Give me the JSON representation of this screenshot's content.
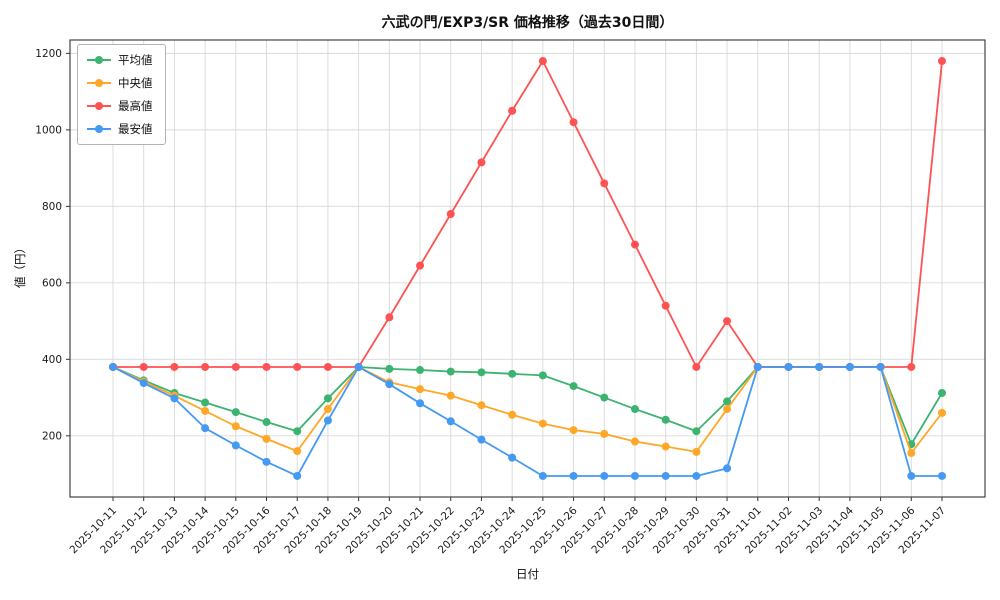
{
  "chart_data": {
    "type": "line",
    "title": "六武の門/EXP3/SR 価格推移（過去30日間）",
    "xlabel": "日付",
    "ylabel": "値（円）",
    "grid": true,
    "legend_position": "upper-left",
    "marker": "circle",
    "ylim": [
      40,
      1235
    ],
    "yticks": [
      200,
      400,
      600,
      800,
      1000,
      1200
    ],
    "categories": [
      "2025-10-11",
      "2025-10-12",
      "2025-10-13",
      "2025-10-14",
      "2025-10-15",
      "2025-10-16",
      "2025-10-17",
      "2025-10-18",
      "2025-10-19",
      "2025-10-20",
      "2025-10-21",
      "2025-10-22",
      "2025-10-23",
      "2025-10-24",
      "2025-10-25",
      "2025-10-26",
      "2025-10-27",
      "2025-10-28",
      "2025-10-29",
      "2025-10-30",
      "2025-10-31",
      "2025-11-01",
      "2025-11-02",
      "2025-11-03",
      "2025-11-04",
      "2025-11-05",
      "2025-11-06",
      "2025-11-07"
    ],
    "series": [
      {
        "name": "平均値",
        "color": "#3CB371",
        "values": [
          380,
          345,
          312,
          287,
          262,
          236,
          212,
          298,
          380,
          375,
          372,
          368,
          366,
          362,
          358,
          330,
          300,
          270,
          242,
          212,
          290,
          380,
          380,
          380,
          380,
          380,
          178,
          312
        ]
      },
      {
        "name": "中央値",
        "color": "#FFA726",
        "values": [
          380,
          342,
          305,
          265,
          225,
          192,
          160,
          270,
          380,
          340,
          322,
          305,
          280,
          255,
          232,
          215,
          205,
          185,
          172,
          158,
          270,
          380,
          380,
          380,
          380,
          380,
          155,
          260
        ]
      },
      {
        "name": "最高値",
        "color": "#FF5252",
        "values": [
          380,
          380,
          380,
          380,
          380,
          380,
          380,
          380,
          380,
          510,
          645,
          780,
          915,
          1050,
          1180,
          1020,
          860,
          700,
          540,
          380,
          500,
          380,
          380,
          380,
          380,
          380,
          380,
          1180
        ]
      },
      {
        "name": "最安値",
        "color": "#4499F2",
        "values": [
          380,
          338,
          298,
          220,
          175,
          132,
          95,
          240,
          380,
          335,
          285,
          238,
          190,
          143,
          95,
          95,
          95,
          95,
          95,
          95,
          115,
          380,
          380,
          380,
          380,
          380,
          95,
          95
        ]
      }
    ]
  },
  "style": {
    "grid_color": "#d9d9d9",
    "spine_color": "#333333",
    "tick_label_color": "#1a1a1a"
  }
}
